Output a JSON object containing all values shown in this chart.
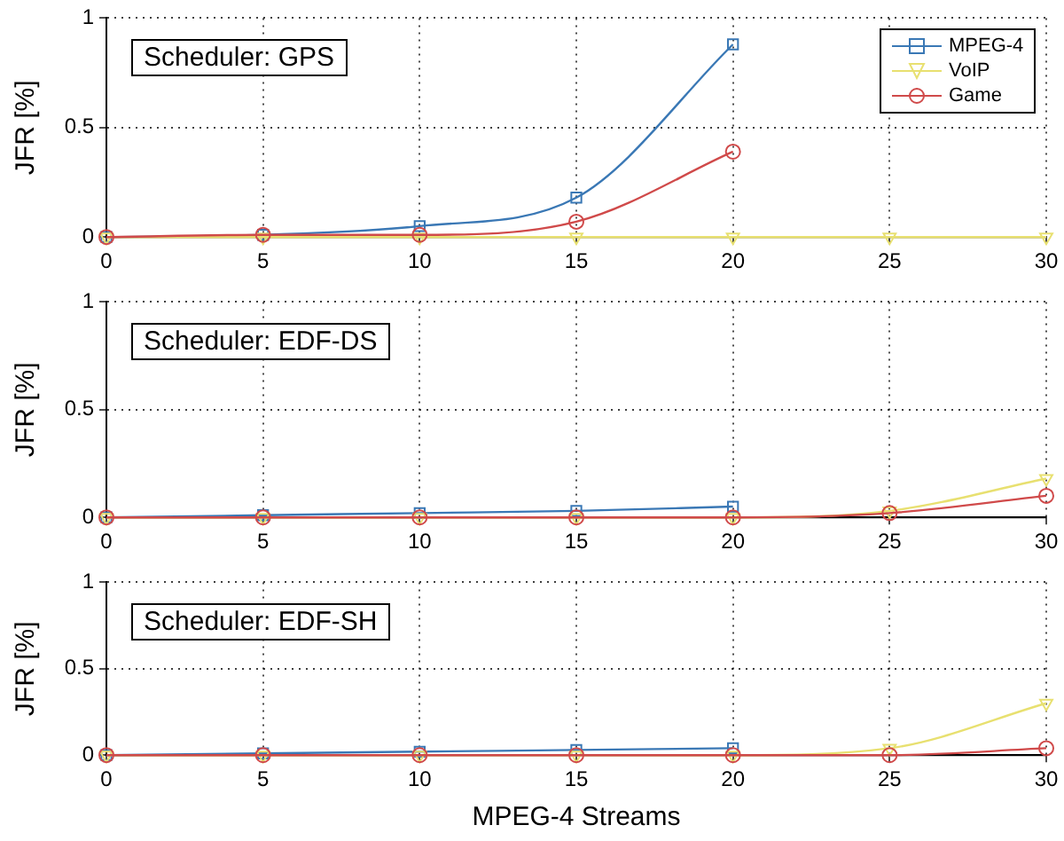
{
  "chart_data": [
    {
      "type": "line",
      "annotations": [
        "Scheduler: GPS"
      ],
      "ylabel": "JFR [%]",
      "x": [
        0,
        5,
        10,
        15,
        20,
        25,
        30
      ],
      "xlim": [
        0,
        30
      ],
      "xticks": [
        0,
        5,
        10,
        15,
        20,
        25,
        30
      ],
      "ylim": [
        0,
        1
      ],
      "yticks": [
        0,
        0.5,
        1
      ],
      "grid": true,
      "legend": "top right",
      "series": [
        {
          "name": "MPEG-4",
          "color": "#3a78b5",
          "marker": "square",
          "values": [
            0,
            0.01,
            0.05,
            0.18,
            0.88,
            null,
            null
          ]
        },
        {
          "name": "VoIP",
          "color": "#e8e070",
          "marker": "triangle",
          "values": [
            0,
            0,
            0,
            0,
            0,
            0,
            0
          ]
        },
        {
          "name": "Game",
          "color": "#d04a4a",
          "marker": "circle",
          "values": [
            0,
            0.01,
            0.01,
            0.07,
            0.39,
            null,
            null
          ]
        }
      ]
    },
    {
      "type": "line",
      "annotations": [
        "Scheduler: EDF-DS"
      ],
      "ylabel": "JFR [%]",
      "x": [
        0,
        5,
        10,
        15,
        20,
        25,
        30
      ],
      "xlim": [
        0,
        30
      ],
      "xticks": [
        0,
        5,
        10,
        15,
        20,
        25,
        30
      ],
      "ylim": [
        0,
        1
      ],
      "yticks": [
        0,
        0.5,
        1
      ],
      "grid": true,
      "series": [
        {
          "color": "#3a78b5",
          "marker": "square",
          "values": [
            0,
            0.01,
            0.02,
            0.03,
            0.05,
            null,
            null
          ]
        },
        {
          "color": "#e8e070",
          "marker": "triangle",
          "values": [
            0,
            0,
            0,
            0,
            0,
            0.03,
            0.18
          ]
        },
        {
          "color": "#d04a4a",
          "marker": "circle",
          "values": [
            0,
            0,
            0,
            0,
            0,
            0.02,
            0.1
          ]
        }
      ]
    },
    {
      "type": "line",
      "annotations": [
        "Scheduler: EDF-SH"
      ],
      "xlabel": "MPEG-4 Streams",
      "ylabel": "JFR [%]",
      "x": [
        0,
        5,
        10,
        15,
        20,
        25,
        30
      ],
      "xlim": [
        0,
        30
      ],
      "xticks": [
        0,
        5,
        10,
        15,
        20,
        25,
        30
      ],
      "ylim": [
        0,
        1
      ],
      "yticks": [
        0,
        0.5,
        1
      ],
      "grid": true,
      "series": [
        {
          "color": "#3a78b5",
          "marker": "square",
          "values": [
            0,
            0.01,
            0.02,
            0.03,
            0.04,
            null,
            null
          ]
        },
        {
          "color": "#e8e070",
          "marker": "triangle",
          "values": [
            0,
            0,
            0,
            0,
            0,
            0.04,
            0.3
          ]
        },
        {
          "color": "#d04a4a",
          "marker": "circle",
          "values": [
            0,
            0,
            0,
            0,
            0,
            0,
            0.04
          ]
        }
      ]
    }
  ]
}
